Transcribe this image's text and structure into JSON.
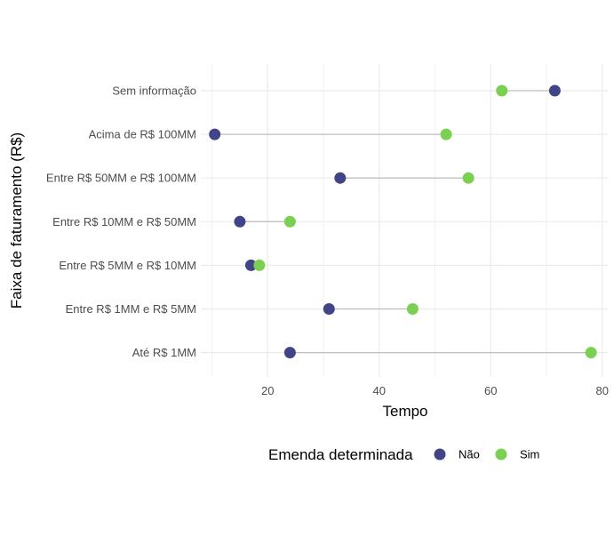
{
  "chart_data": {
    "type": "scatter",
    "subtype": "dumbbell",
    "xlabel": "Tempo",
    "ylabel": "Faixa de faturamento (R$)",
    "xlim": [
      8,
      81
    ],
    "x_ticks": [
      20,
      40,
      60,
      80
    ],
    "categories": [
      "Sem informação",
      "Acima de R$ 100MM",
      "Entre R$ 50MM e R$ 100MM",
      "Entre R$ 10MM e R$ 50MM",
      "Entre R$ 5MM e R$ 10MM",
      "Entre R$ 1MM e R$ 5MM",
      "Até R$ 1MM"
    ],
    "legend_title": "Emenda determinada",
    "legend_position": "bottom",
    "grid": true,
    "series": [
      {
        "name": "Não",
        "color": "#414487",
        "values": [
          71.5,
          10.5,
          33,
          15,
          17,
          31,
          24
        ]
      },
      {
        "name": "Sim",
        "color": "#7AD151",
        "values": [
          62,
          52,
          56,
          24,
          18.5,
          46,
          78
        ]
      }
    ],
    "connector_color": "#c0c0c0"
  }
}
